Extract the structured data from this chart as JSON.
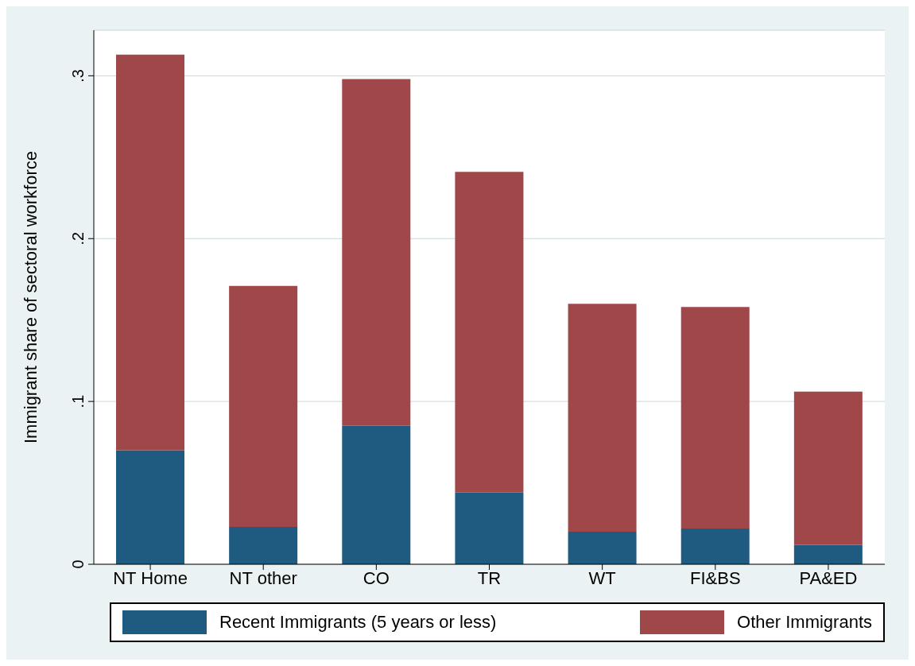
{
  "chart_data": {
    "type": "bar",
    "ylabel": "Immigrant share of sectoral workforce",
    "categories": [
      "NT Home",
      "NT other",
      "CO",
      "TR",
      "WT",
      "FI&BS",
      "PA&ED"
    ],
    "stacked": true,
    "series": [
      {
        "name": "Recent Immigrants (5 years or less)",
        "color": "#1f5a80",
        "values": [
          0.07,
          0.023,
          0.085,
          0.044,
          0.02,
          0.022,
          0.012
        ]
      },
      {
        "name": "Other Immigrants",
        "color": "#a0474a",
        "values": [
          0.243,
          0.148,
          0.213,
          0.197,
          0.14,
          0.136,
          0.094
        ]
      }
    ],
    "ylim": [
      0,
      0.328
    ],
    "yticks": [
      {
        "value": 0,
        "label": "0"
      },
      {
        "value": 0.1,
        "label": ".1"
      },
      {
        "value": 0.2,
        "label": ".2"
      },
      {
        "value": 0.3,
        "label": ".3"
      }
    ],
    "grid": "y",
    "legend": "bottom"
  }
}
